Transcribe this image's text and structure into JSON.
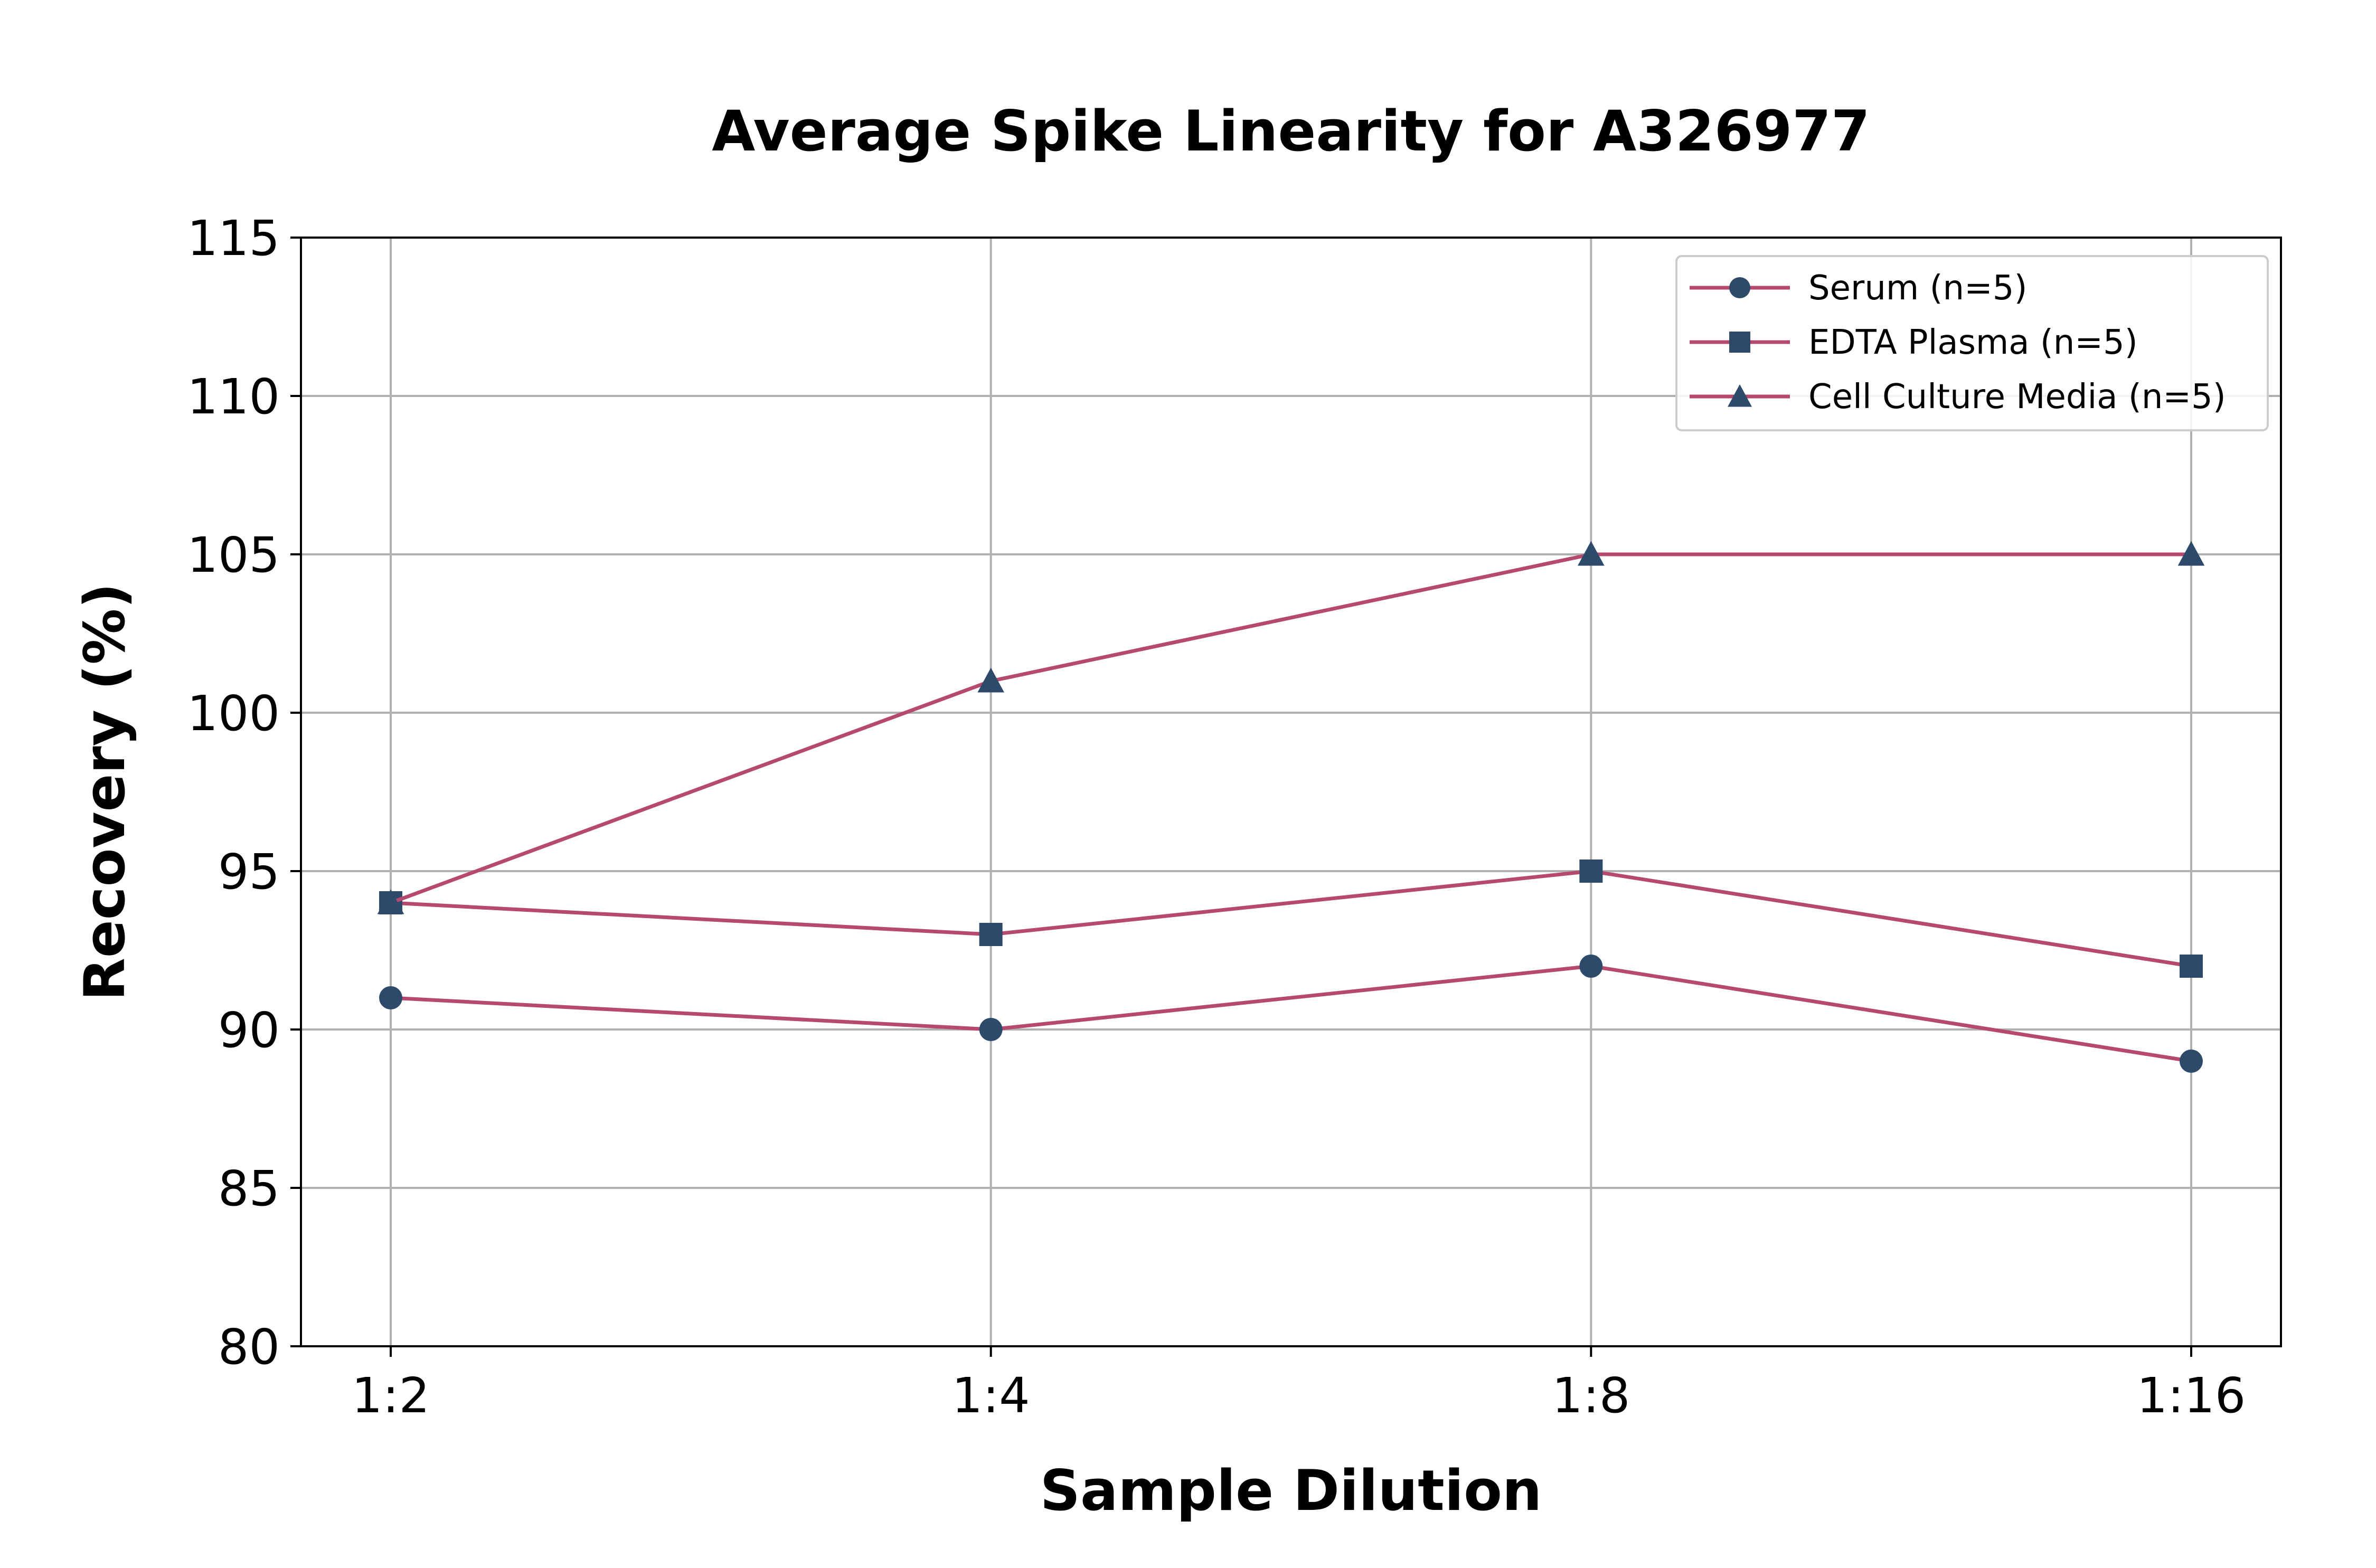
{
  "colors": {
    "line": "#b5496e",
    "marker": "#2e4a6b",
    "grid": "#b0b0b0",
    "axis": "#000000",
    "background": "#ffffff",
    "legend_border": "#cccccc"
  },
  "chart_data": {
    "type": "line",
    "title": "Average Spike Linearity for A326977",
    "xlabel": "Sample Dilution",
    "ylabel": "Recovery (%)",
    "categories": [
      "1:2",
      "1:4",
      "1:8",
      "1:16"
    ],
    "ylim": [
      80,
      115
    ],
    "yticks": [
      80,
      85,
      90,
      95,
      100,
      105,
      110,
      115
    ],
    "grid": true,
    "legend_position": "top-right",
    "series": [
      {
        "name": "Serum (n=5)",
        "marker": "circle",
        "values": [
          91,
          90,
          92,
          89
        ]
      },
      {
        "name": "EDTA Plasma (n=5)",
        "marker": "square",
        "values": [
          94,
          93,
          95,
          92
        ]
      },
      {
        "name": "Cell Culture Media (n=5)",
        "marker": "triangle",
        "values": [
          94,
          101,
          105,
          105
        ]
      }
    ]
  }
}
